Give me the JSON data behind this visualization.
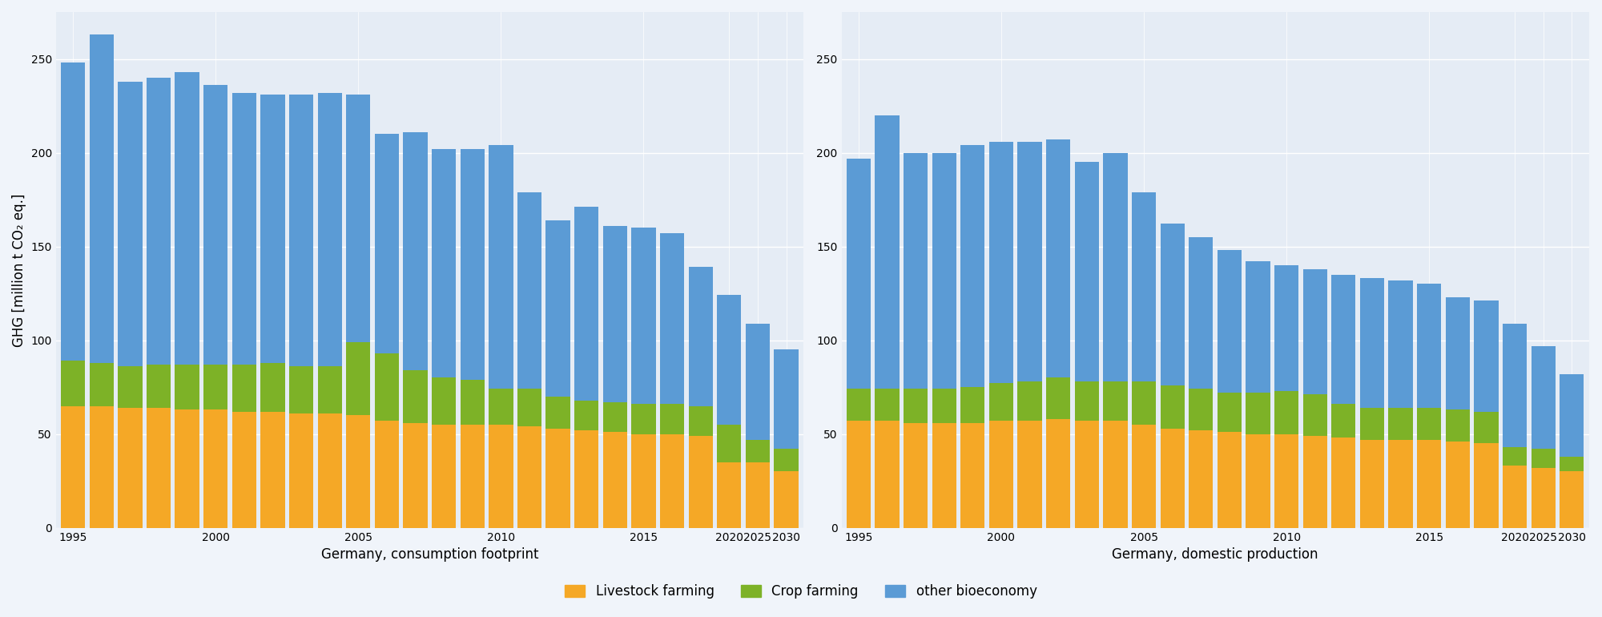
{
  "left_years": [
    1995,
    1996,
    1997,
    1998,
    1999,
    2000,
    2001,
    2002,
    2003,
    2004,
    2005,
    2006,
    2007,
    2008,
    2009,
    2010,
    2011,
    2012,
    2013,
    2014,
    2015,
    2016,
    2017,
    2020,
    2025,
    2030
  ],
  "left_livestock": [
    65,
    65,
    64,
    64,
    63,
    63,
    62,
    62,
    61,
    61,
    60,
    57,
    56,
    55,
    55,
    55,
    54,
    53,
    52,
    51,
    50,
    50,
    49,
    35,
    35,
    30
  ],
  "left_crop": [
    24,
    23,
    22,
    23,
    24,
    24,
    25,
    26,
    25,
    25,
    39,
    36,
    28,
    25,
    24,
    19,
    20,
    17,
    16,
    16,
    16,
    16,
    16,
    20,
    12,
    12
  ],
  "left_other": [
    159,
    175,
    152,
    153,
    156,
    149,
    145,
    143,
    145,
    146,
    132,
    117,
    127,
    122,
    123,
    130,
    105,
    94,
    103,
    94,
    94,
    91,
    74,
    69,
    62,
    53
  ],
  "right_years": [
    1995,
    1996,
    1997,
    1998,
    1999,
    2000,
    2001,
    2002,
    2003,
    2004,
    2005,
    2006,
    2007,
    2008,
    2009,
    2010,
    2011,
    2012,
    2013,
    2014,
    2015,
    2016,
    2017,
    2020,
    2025,
    2030
  ],
  "right_livestock": [
    57,
    57,
    56,
    56,
    56,
    57,
    57,
    58,
    57,
    57,
    55,
    53,
    52,
    51,
    50,
    50,
    49,
    48,
    47,
    47,
    47,
    46,
    45,
    33,
    32,
    30
  ],
  "right_crop": [
    17,
    17,
    18,
    18,
    19,
    20,
    21,
    22,
    21,
    21,
    23,
    23,
    22,
    21,
    22,
    23,
    22,
    18,
    17,
    17,
    17,
    17,
    17,
    10,
    10,
    8
  ],
  "right_other": [
    123,
    146,
    126,
    126,
    129,
    129,
    128,
    127,
    117,
    122,
    101,
    86,
    81,
    76,
    70,
    67,
    67,
    69,
    69,
    68,
    66,
    60,
    59,
    66,
    55,
    44
  ],
  "color_livestock": "#f5a826",
  "color_crop": "#7db227",
  "color_other": "#5b9bd5",
  "axes_bg": "#e5ecf5",
  "fig_bg": "#f0f4fa",
  "ylabel": "GHG [million t CO₂ eq.]",
  "xlabel_left": "Germany, consumption footprint",
  "xlabel_right": "Germany, domestic production",
  "legend_livestock": "Livestock farming",
  "legend_crop": "Crop farming",
  "legend_other": "other bioeconomy",
  "ylim": [
    0,
    275
  ],
  "yticks": [
    0,
    50,
    100,
    150,
    200,
    250
  ],
  "tick_years": [
    1995,
    2000,
    2005,
    2010,
    2015,
    2020,
    2025,
    2030
  ]
}
